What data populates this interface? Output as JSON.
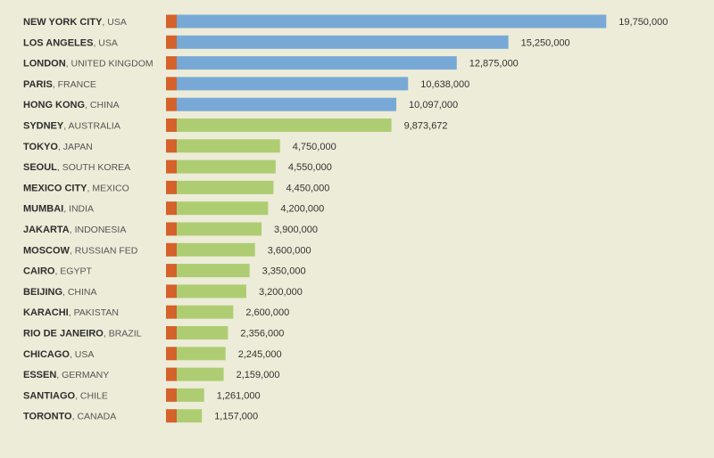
{
  "chart_data": {
    "type": "bar",
    "orientation": "horizontal",
    "title": "",
    "xlabel": "",
    "ylabel": "",
    "xlim": [
      0,
      20600000
    ],
    "colors": {
      "background": "#edecd8",
      "bar_top": "#78a9d6",
      "bar_other": "#aecd73",
      "marker": "#d4622a"
    },
    "top_group_count": 5,
    "categories": [
      {
        "city": "NEW YORK CITY",
        "country": "USA"
      },
      {
        "city": "LOS ANGELES",
        "country": "USA"
      },
      {
        "city": "LONDON",
        "country": "UNITED KINGDOM"
      },
      {
        "city": "PARIS",
        "country": "FRANCE"
      },
      {
        "city": "HONG KONG",
        "country": "CHINA"
      },
      {
        "city": "SYDNEY",
        "country": "AUSTRALIA"
      },
      {
        "city": "TOKYO",
        "country": "JAPAN"
      },
      {
        "city": "SEOUL",
        "country": "SOUTH KOREA"
      },
      {
        "city": "MEXICO CITY",
        "country": "MEXICO"
      },
      {
        "city": "MUMBAI",
        "country": "INDIA"
      },
      {
        "city": "JAKARTA",
        "country": "INDONESIA"
      },
      {
        "city": "MOSCOW",
        "country": "RUSSIAN FED"
      },
      {
        "city": "CAIRO",
        "country": "EGYPT"
      },
      {
        "city": "BEIJING",
        "country": "CHINA"
      },
      {
        "city": "KARACHI",
        "country": "PAKISTAN"
      },
      {
        "city": "RIO DE JANEIRO",
        "country": "BRAZIL"
      },
      {
        "city": "CHICAGO",
        "country": "USA"
      },
      {
        "city": "ESSEN",
        "country": "GERMANY"
      },
      {
        "city": "SANTIAGO",
        "country": "CHILE"
      },
      {
        "city": "TORONTO",
        "country": "CANADA"
      }
    ],
    "values": [
      19750000,
      15250000,
      12875000,
      10638000,
      10097000,
      9873672,
      4750000,
      4550000,
      4450000,
      4200000,
      3900000,
      3600000,
      3350000,
      3200000,
      2600000,
      2356000,
      2245000,
      2159000,
      1261000,
      1157000
    ],
    "value_labels": [
      "19,750,000",
      "15,250,000",
      "12,875,000",
      "10,638,000",
      "10,097,000",
      "9,873,672",
      "4,750,000",
      "4,550,000",
      "4,450,000",
      "4,200,000",
      "3,900,000",
      "3,600,000",
      "3,350,000",
      "3,200,000",
      "2,600,000",
      "2,356,000",
      "2,245,000",
      "2,159,000",
      "1,261,000",
      "1,157,000"
    ]
  }
}
